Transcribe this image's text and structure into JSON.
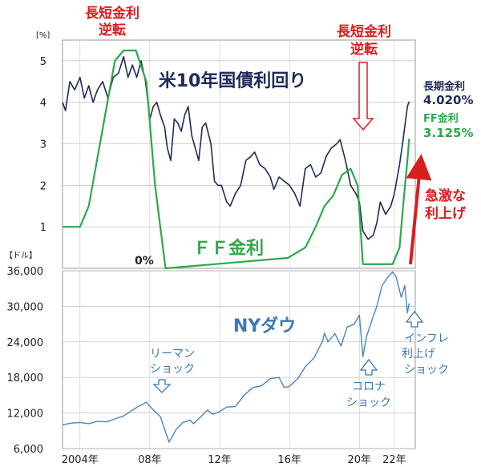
{
  "colors": {
    "us10y": "#1f2a5a",
    "ff": "#2ea84a",
    "dow": "#4a84c0",
    "red_annot": "#d81e1e",
    "grid": "#bdbdbd",
    "frame": "#999999"
  },
  "chart_data": [
    {
      "type": "line",
      "ylabel": "[%]",
      "ylim": [
        0,
        5.5
      ],
      "yticks": [
        "1",
        "2",
        "3",
        "4",
        "5"
      ],
      "grid": true,
      "series": [
        {
          "name": "米10年国債利回り",
          "x": [
            2003.0,
            2003.17,
            2003.42,
            2003.7,
            2004.0,
            2004.25,
            2004.5,
            2004.75,
            2005.0,
            2005.3,
            2005.6,
            2005.9,
            2006.2,
            2006.5,
            2006.75,
            2007.0,
            2007.25,
            2007.5,
            2007.75,
            2008.0,
            2008.2,
            2008.4,
            2008.6,
            2008.85,
            2009.0,
            2009.2,
            2009.4,
            2009.6,
            2009.8,
            2010.0,
            2010.2,
            2010.4,
            2010.6,
            2010.8,
            2011.0,
            2011.2,
            2011.5,
            2011.7,
            2011.9,
            2012.1,
            2012.4,
            2012.6,
            2012.9,
            2013.2,
            2013.5,
            2013.8,
            2014.0,
            2014.3,
            2014.6,
            2014.9,
            2015.1,
            2015.4,
            2015.7,
            2016.0,
            2016.3,
            2016.6,
            2016.9,
            2017.2,
            2017.5,
            2017.8,
            2018.1,
            2018.4,
            2018.7,
            2018.9,
            2019.2,
            2019.5,
            2019.8,
            2020.0,
            2020.2,
            2020.5,
            2020.8,
            2021.0,
            2021.2,
            2021.5,
            2021.8,
            2022.0,
            2022.3,
            2022.5,
            2022.75,
            2022.85
          ],
          "values": [
            4.0,
            3.8,
            4.5,
            4.3,
            4.6,
            4.1,
            4.4,
            4.0,
            4.3,
            4.5,
            4.1,
            4.6,
            4.7,
            5.1,
            4.6,
            4.9,
            4.6,
            5.0,
            4.5,
            3.6,
            3.9,
            4.0,
            3.7,
            3.4,
            2.9,
            2.6,
            3.6,
            3.5,
            3.3,
            3.7,
            3.9,
            3.2,
            2.9,
            2.6,
            3.4,
            3.5,
            3.0,
            2.1,
            2.0,
            2.0,
            1.6,
            1.5,
            1.8,
            2.0,
            2.6,
            2.7,
            2.8,
            2.5,
            2.4,
            2.2,
            1.9,
            2.2,
            2.1,
            2.0,
            1.8,
            1.5,
            2.4,
            2.5,
            2.2,
            2.3,
            2.7,
            2.9,
            3.0,
            3.1,
            2.6,
            2.0,
            1.8,
            1.6,
            0.9,
            0.7,
            0.8,
            1.1,
            1.6,
            1.3,
            1.5,
            1.8,
            2.5,
            3.1,
            3.9,
            4.02
          ]
        },
        {
          "name": "FF金利",
          "x": [
            2003.0,
            2004.0,
            2004.5,
            2006.0,
            2006.5,
            2007.2,
            2007.8,
            2008.3,
            2008.9,
            2015.9,
            2016.9,
            2017.5,
            2018.0,
            2018.5,
            2019.0,
            2019.5,
            2019.9,
            2020.2,
            2021.9,
            2022.3,
            2022.5,
            2022.75,
            2022.85
          ],
          "values": [
            1.0,
            1.0,
            1.5,
            5.0,
            5.25,
            5.25,
            4.5,
            2.0,
            0.0,
            0.25,
            0.5,
            1.0,
            1.5,
            1.75,
            2.25,
            2.4,
            2.0,
            0.1,
            0.1,
            0.5,
            1.5,
            2.6,
            3.125
          ]
        }
      ],
      "xlim": [
        2003.0,
        2023.2
      ]
    },
    {
      "type": "line",
      "ylabel": "【ドル】",
      "ylim": [
        6000,
        36000
      ],
      "yticks": [
        "6,000",
        "12,000",
        "18,000",
        "24,000",
        "30,000",
        "36,000"
      ],
      "xticks": [
        "2004年",
        "08年",
        "12年",
        "16年",
        "20年",
        "22年"
      ],
      "grid": true,
      "series": [
        {
          "name": "NYダウ",
          "x": [
            2003.0,
            2003.5,
            2004.0,
            2004.5,
            2005.0,
            2005.5,
            2006.0,
            2006.5,
            2007.0,
            2007.4,
            2007.8,
            2008.2,
            2008.6,
            2008.9,
            2009.1,
            2009.5,
            2009.9,
            2010.3,
            2010.5,
            2010.9,
            2011.3,
            2011.6,
            2011.9,
            2012.4,
            2012.9,
            2013.4,
            2013.9,
            2014.4,
            2014.9,
            2015.4,
            2015.7,
            2016.0,
            2016.5,
            2016.9,
            2017.4,
            2017.9,
            2018.0,
            2018.2,
            2018.6,
            2018.95,
            2019.3,
            2019.7,
            2020.0,
            2020.2,
            2020.4,
            2020.7,
            2021.0,
            2021.3,
            2021.6,
            2021.9,
            2022.1,
            2022.4,
            2022.6,
            2022.75,
            2022.85
          ],
          "values": [
            10000,
            10300,
            10400,
            10200,
            10600,
            10500,
            11000,
            11500,
            12500,
            13200,
            13800,
            12500,
            11400,
            8800,
            7100,
            9200,
            10400,
            10800,
            10200,
            11300,
            12500,
            11800,
            12100,
            13000,
            13100,
            15000,
            16300,
            16600,
            17800,
            18000,
            16300,
            16500,
            17900,
            19800,
            21300,
            24200,
            25500,
            24000,
            25400,
            23300,
            26500,
            27000,
            28500,
            21500,
            24800,
            27500,
            30000,
            33500,
            34800,
            35800,
            35000,
            31500,
            33500,
            28900,
            30500
          ]
        }
      ],
      "xlim": [
        2003.0,
        2023.2
      ]
    }
  ],
  "top_chart": {
    "y_unit": "[%]",
    "y_labels": [
      "1",
      "2",
      "3",
      "4",
      "5"
    ],
    "zero_label": "0%",
    "annot_inversion_1": [
      "長短金利",
      "逆転"
    ],
    "annot_inversion_2": [
      "長短金利",
      "逆転"
    ],
    "title_us10y": "米10年国債利回り",
    "title_ff": "ＦＦ金利",
    "legend_long": "長期金利",
    "legend_long_val": "4.020%",
    "legend_ff": "FF金利",
    "legend_ff_val": "3.125%",
    "annot_hike": [
      "急激な",
      "利上げ"
    ]
  },
  "bottom_chart": {
    "y_unit": "【ドル】",
    "y_labels": [
      "6,000",
      "12,000",
      "18,000",
      "24,000",
      "30,000",
      "36,000"
    ],
    "x_labels": [
      "2004年",
      "08年",
      "12年",
      "16年",
      "20年",
      "22年"
    ],
    "title": "NYダウ",
    "annot_lehman": [
      "リーマン",
      "ショック"
    ],
    "annot_corona": [
      "コロナ",
      "ショック"
    ],
    "annot_inflation": [
      "インフレ",
      "利上げ",
      "ショック"
    ]
  }
}
